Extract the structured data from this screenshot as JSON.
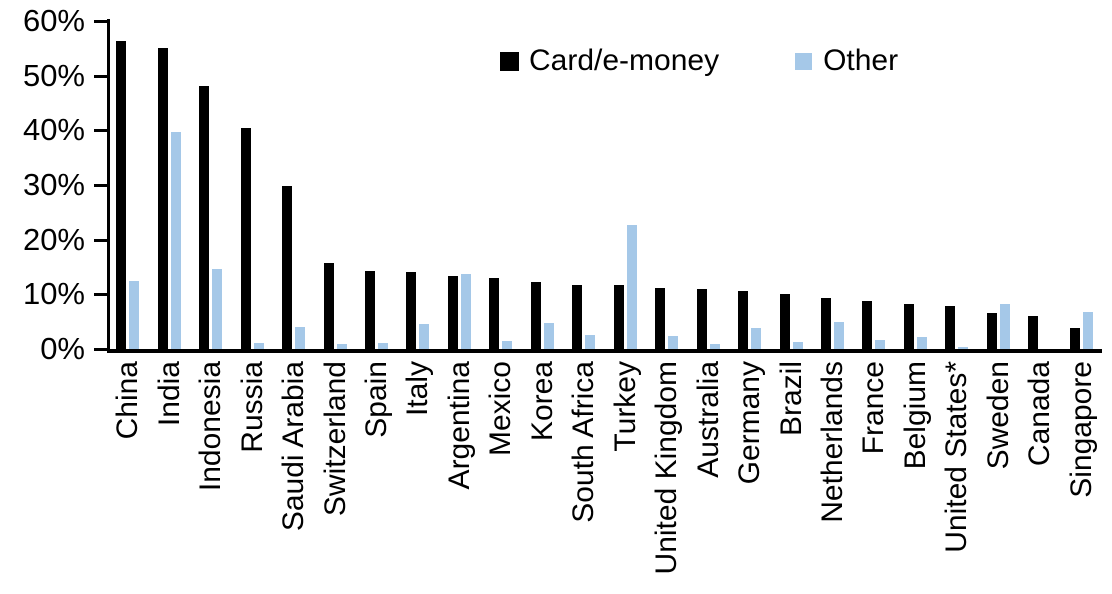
{
  "chart_data": {
    "type": "bar",
    "title": "",
    "xlabel": "",
    "ylabel": "",
    "ylim": [
      0,
      60
    ],
    "ytick_labels": [
      "60%",
      "50%",
      "40%",
      "30%",
      "20%",
      "10%",
      "0%"
    ],
    "ytick_values": [
      60,
      50,
      40,
      30,
      20,
      10,
      0
    ],
    "grid": false,
    "legend_position": "top-center",
    "categories": [
      "China",
      "India",
      "Indonesia",
      "Russia",
      "Saudi Arabia",
      "Switzerland",
      "Spain",
      "Italy",
      "Argentina",
      "Mexico",
      "Korea",
      "South Africa",
      "Turkey",
      "United Kingdom",
      "Australia",
      "Germany",
      "Brazil",
      "Netherlands",
      "France",
      "Belgium",
      "United States*",
      "Sweden",
      "Canada",
      "Singapore"
    ],
    "series": [
      {
        "name": "Card/e-money",
        "color": "#000000",
        "values": [
          56.3,
          55.0,
          48.2,
          40.5,
          29.9,
          15.7,
          14.2,
          14.1,
          13.4,
          12.9,
          12.2,
          11.8,
          11.7,
          11.1,
          10.9,
          10.6,
          10.1,
          9.3,
          8.7,
          8.2,
          7.9,
          6.6,
          6.0,
          3.9
        ]
      },
      {
        "name": "Other",
        "color": "#A5C8E8",
        "values": [
          12.4,
          39.7,
          14.6,
          1.1,
          4.0,
          0.9,
          1.1,
          4.6,
          13.8,
          1.5,
          4.7,
          2.5,
          22.6,
          2.4,
          1.0,
          3.9,
          1.2,
          4.9,
          1.7,
          2.2,
          0.3,
          8.2,
          0.0,
          6.7
        ]
      }
    ]
  }
}
